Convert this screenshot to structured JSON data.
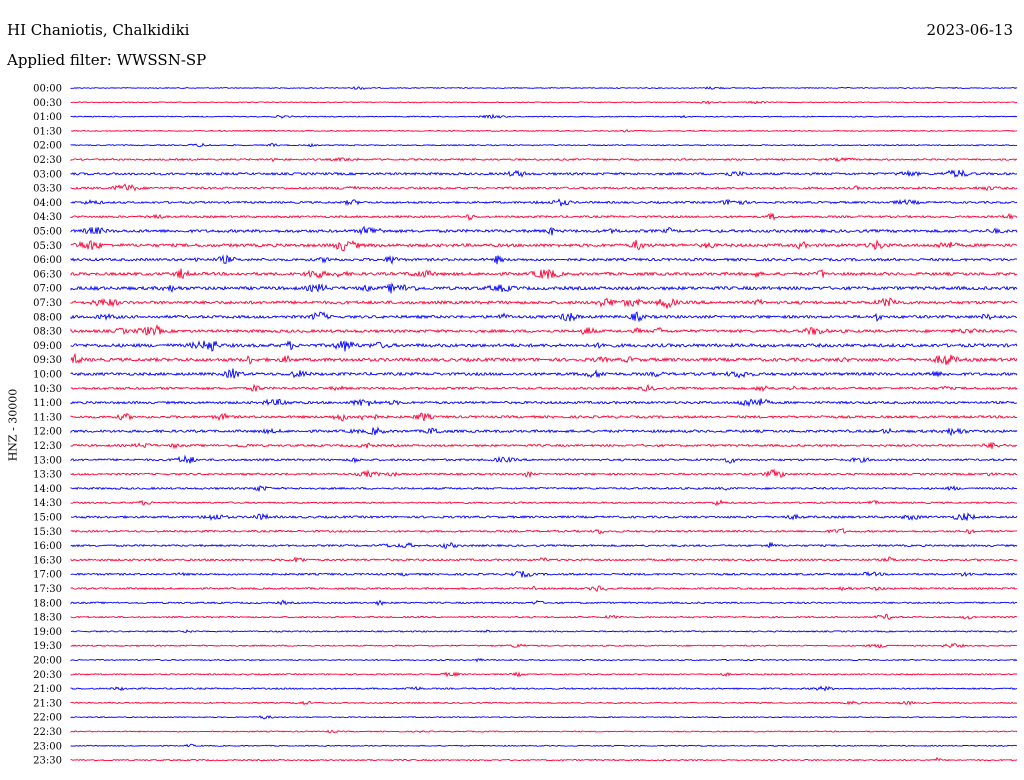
{
  "header": {
    "station": "HI Chaniotis, Chalkidiki",
    "date": "2023-06-13",
    "filter": "Applied filter: WWSSN-SP"
  },
  "channel_label": "HNZ - 30000",
  "colors": {
    "even": "#0000ff",
    "odd": "#ff0033"
  },
  "chart_data": {
    "type": "line",
    "title": "HI Chaniotis, Chalkidiki",
    "date": "2023-06-13",
    "ylabel": "HNZ - 30000",
    "grid": false,
    "legend": "none",
    "rows": [
      "00:00",
      "00:30",
      "01:00",
      "01:30",
      "02:00",
      "02:30",
      "03:00",
      "03:30",
      "04:00",
      "04:30",
      "05:00",
      "05:30",
      "06:00",
      "06:30",
      "07:00",
      "07:30",
      "08:00",
      "08:30",
      "09:00",
      "09:30",
      "10:00",
      "10:30",
      "11:00",
      "11:30",
      "12:00",
      "12:30",
      "13:00",
      "13:30",
      "14:00",
      "14:30",
      "15:00",
      "15:30",
      "16:00",
      "16:30",
      "17:00",
      "17:30",
      "18:00",
      "18:30",
      "19:00",
      "19:30",
      "20:00",
      "20:30",
      "21:00",
      "21:30",
      "22:00",
      "22:30",
      "23:00",
      "23:30"
    ],
    "activity": [
      0.05,
      0.06,
      0.06,
      0.08,
      0.12,
      0.35,
      0.55,
      0.5,
      0.45,
      0.45,
      0.75,
      0.85,
      0.65,
      0.8,
      0.9,
      0.85,
      0.75,
      0.75,
      0.9,
      0.9,
      0.75,
      0.55,
      0.6,
      0.6,
      0.65,
      0.5,
      0.45,
      0.4,
      0.4,
      0.3,
      0.5,
      0.4,
      0.4,
      0.45,
      0.4,
      0.35,
      0.3,
      0.25,
      0.2,
      0.2,
      0.15,
      0.2,
      0.25,
      0.15,
      0.1,
      0.1,
      0.1,
      0.2
    ]
  }
}
